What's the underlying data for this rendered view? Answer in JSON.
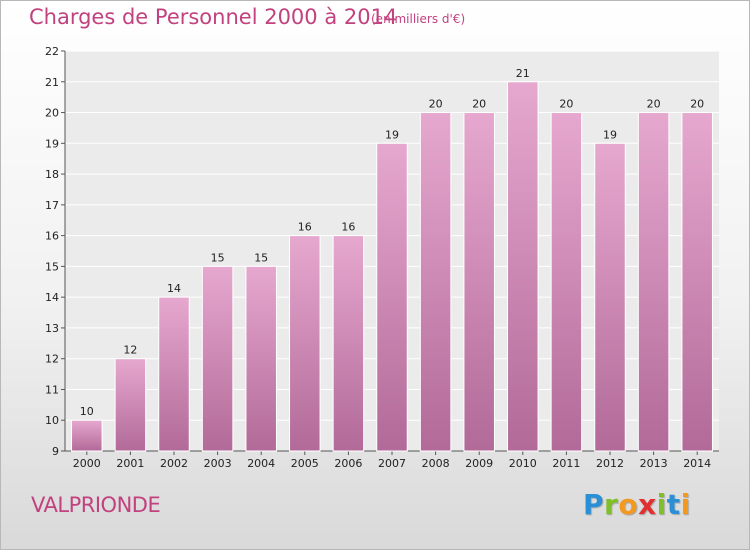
{
  "header": {
    "title": "Charges de Personnel 2000 à 2014",
    "unit": "(en milliers d'€)"
  },
  "footer": {
    "town": "VALPRIONDE",
    "brand_letters": [
      "P",
      "r",
      "o",
      "x",
      "i",
      "t",
      "i"
    ],
    "brand_colors": [
      "#2a8fd6",
      "#7fbf2a",
      "#f39a1e",
      "#e0302f",
      "#7fbf2a",
      "#2a8fd6",
      "#f39a1e"
    ]
  },
  "colors": {
    "title": "#c2417f",
    "bar_top": "#e6a8cf",
    "bar_bottom": "#b26a98",
    "bar_edge": "#ffffff",
    "plot_bg": "#ebebeb",
    "grid": "#ffffff",
    "text": "#222222"
  },
  "chart_data": {
    "type": "bar",
    "title": "Charges de Personnel 2000 à 2014",
    "subtitle": "(en milliers d'€)",
    "categories": [
      "2000",
      "2001",
      "2002",
      "2003",
      "2004",
      "2005",
      "2006",
      "2007",
      "2008",
      "2009",
      "2010",
      "2011",
      "2012",
      "2013",
      "2014"
    ],
    "values": [
      10,
      12,
      14,
      15,
      15,
      16,
      16,
      19,
      20,
      20,
      21,
      20,
      19,
      20,
      20
    ],
    "ylim": [
      9,
      22
    ],
    "yticks": [
      9,
      10,
      11,
      12,
      13,
      14,
      15,
      16,
      17,
      18,
      19,
      20,
      21,
      22
    ],
    "grid": true,
    "data_labels": true
  }
}
